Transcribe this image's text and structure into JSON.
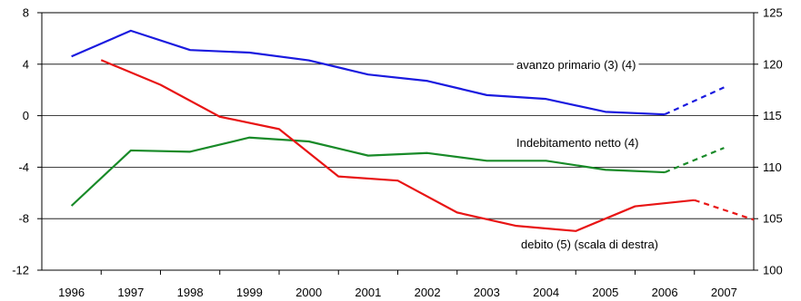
{
  "chart_data": {
    "type": "line",
    "title": "",
    "xlabel": "",
    "ylabel_left": "",
    "ylabel_right": "",
    "x": [
      "1996",
      "1997",
      "1998",
      "1999",
      "2000",
      "2001",
      "2002",
      "2003",
      "2004",
      "2005",
      "2006",
      "2007"
    ],
    "y_left": {
      "ticks": [
        8,
        4,
        0,
        -4,
        -8,
        -12
      ],
      "tick_labels": [
        "8",
        "4",
        "0",
        "-4",
        "-8",
        "-12"
      ],
      "lim": [
        -12,
        8
      ]
    },
    "y_right": {
      "ticks": [
        125,
        120,
        115,
        110,
        105,
        100
      ],
      "tick_labels": [
        "125",
        "120",
        "115",
        "110",
        "105",
        "100"
      ],
      "lim": [
        100,
        125
      ]
    },
    "grid": "horizontal",
    "series": [
      {
        "name": "avanzo primario (3) (4)",
        "axis": "left",
        "color": "#1a1adf",
        "values": [
          4.6,
          6.6,
          5.1,
          4.9,
          4.3,
          3.2,
          2.7,
          1.6,
          1.3,
          0.3,
          0.1,
          2.2
        ],
        "dashed_from_index": 10
      },
      {
        "name": "Indebitamento netto (4)",
        "axis": "left",
        "color": "#188a28",
        "values": [
          -7.0,
          -2.7,
          -2.8,
          -1.7,
          -2.0,
          -3.1,
          -2.9,
          -3.5,
          -3.5,
          -4.2,
          -4.4,
          -2.5
        ],
        "dashed_from_index": 10
      },
      {
        "name": "debito (5) (scala di destra)",
        "axis": "right",
        "color": "#e81414",
        "values": [
          120.4,
          118.0,
          114.9,
          113.7,
          109.1,
          108.7,
          105.6,
          104.3,
          103.8,
          106.2,
          106.8,
          104.9
        ],
        "x_offset_half_period": true,
        "dashed_from_index": 10
      }
    ],
    "annotations": [
      {
        "text": "avanzo primario (3) (4)",
        "series": 0
      },
      {
        "text": "Indebitamento netto (4)",
        "series": 1
      },
      {
        "text": "debito (5) (scala di destra)",
        "series": 2
      }
    ]
  }
}
